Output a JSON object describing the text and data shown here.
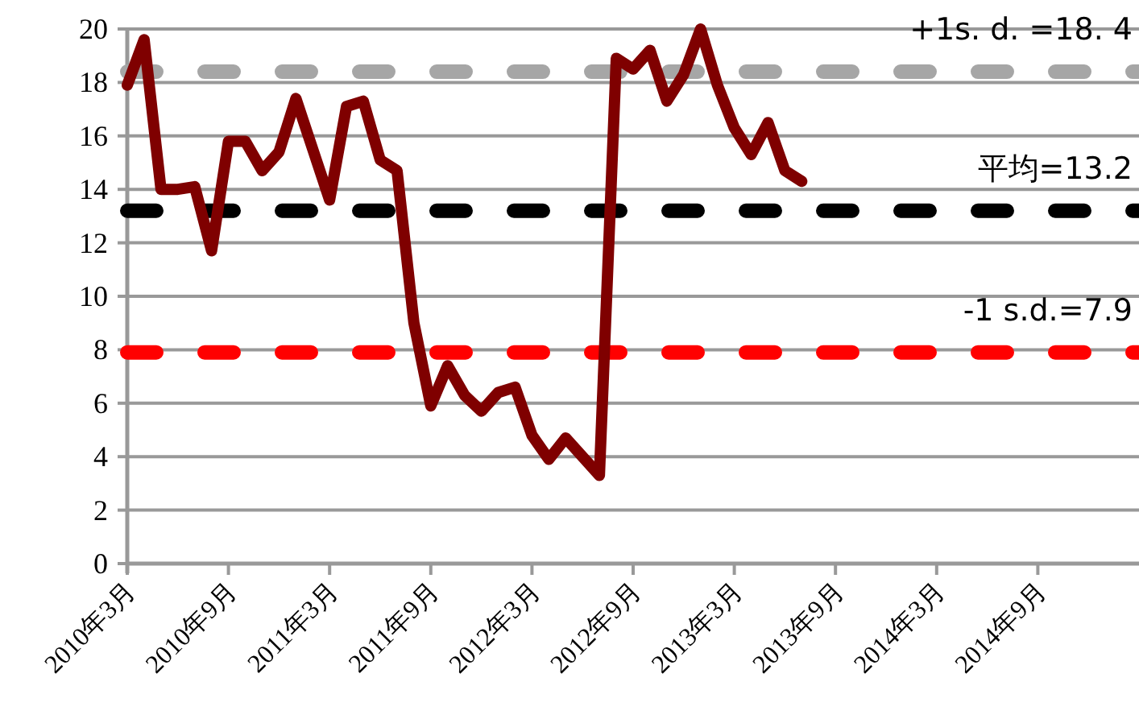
{
  "chart_data": {
    "type": "line",
    "categories": [
      "2010年3月",
      null,
      null,
      null,
      null,
      null,
      "2010年9月",
      null,
      null,
      null,
      null,
      null,
      "2011年3月",
      null,
      null,
      null,
      null,
      null,
      "2011年9月",
      null,
      null,
      null,
      null,
      null,
      "2012年3月",
      null,
      null,
      null,
      null,
      null,
      "2012年9月",
      null,
      null,
      null,
      null,
      null,
      "2013年3月",
      null,
      null,
      null,
      null,
      null,
      "2013年9月",
      null,
      null,
      null,
      null,
      null,
      "2014年3月",
      null,
      null,
      null,
      null,
      null,
      "2014年9月",
      null,
      null,
      null,
      null,
      null
    ],
    "series": [
      {
        "color": "#7f0000",
        "values": [
          17.9,
          19.6,
          14.0,
          14.0,
          14.1,
          11.7,
          15.8,
          15.8,
          14.7,
          15.4,
          17.4,
          15.5,
          13.6,
          17.1,
          17.3,
          15.1,
          14.7,
          9.0,
          5.9,
          7.4,
          6.3,
          5.7,
          6.4,
          6.6,
          4.8,
          3.9,
          4.7,
          4.0,
          3.3,
          18.9,
          18.5,
          19.2,
          17.3,
          18.3,
          20.0,
          17.9,
          16.3,
          15.3,
          16.5,
          14.7,
          14.3,
          null,
          null,
          null,
          null,
          null,
          null,
          null,
          null,
          null,
          null,
          null,
          null,
          null,
          null,
          null,
          null,
          null,
          null,
          null
        ]
      }
    ],
    "ylim": [
      0,
      20
    ],
    "yticks": [
      0,
      2,
      4,
      6,
      8,
      10,
      12,
      14,
      16,
      18,
      20
    ],
    "grid": "y",
    "ref_lines": [
      {
        "axis": "y",
        "value": 18.4,
        "label": "+1s. d. =18. 4",
        "color": "#a6a6a6",
        "line_style": "dashed"
      },
      {
        "axis": "y",
        "value": 13.2,
        "label": "平均=13.2",
        "color": "#000000",
        "line_style": "dashed"
      },
      {
        "axis": "y",
        "value": 7.9,
        "label": "-1 s.d.=7.9",
        "color": "#ff0000",
        "line_style": "dashed"
      }
    ]
  }
}
